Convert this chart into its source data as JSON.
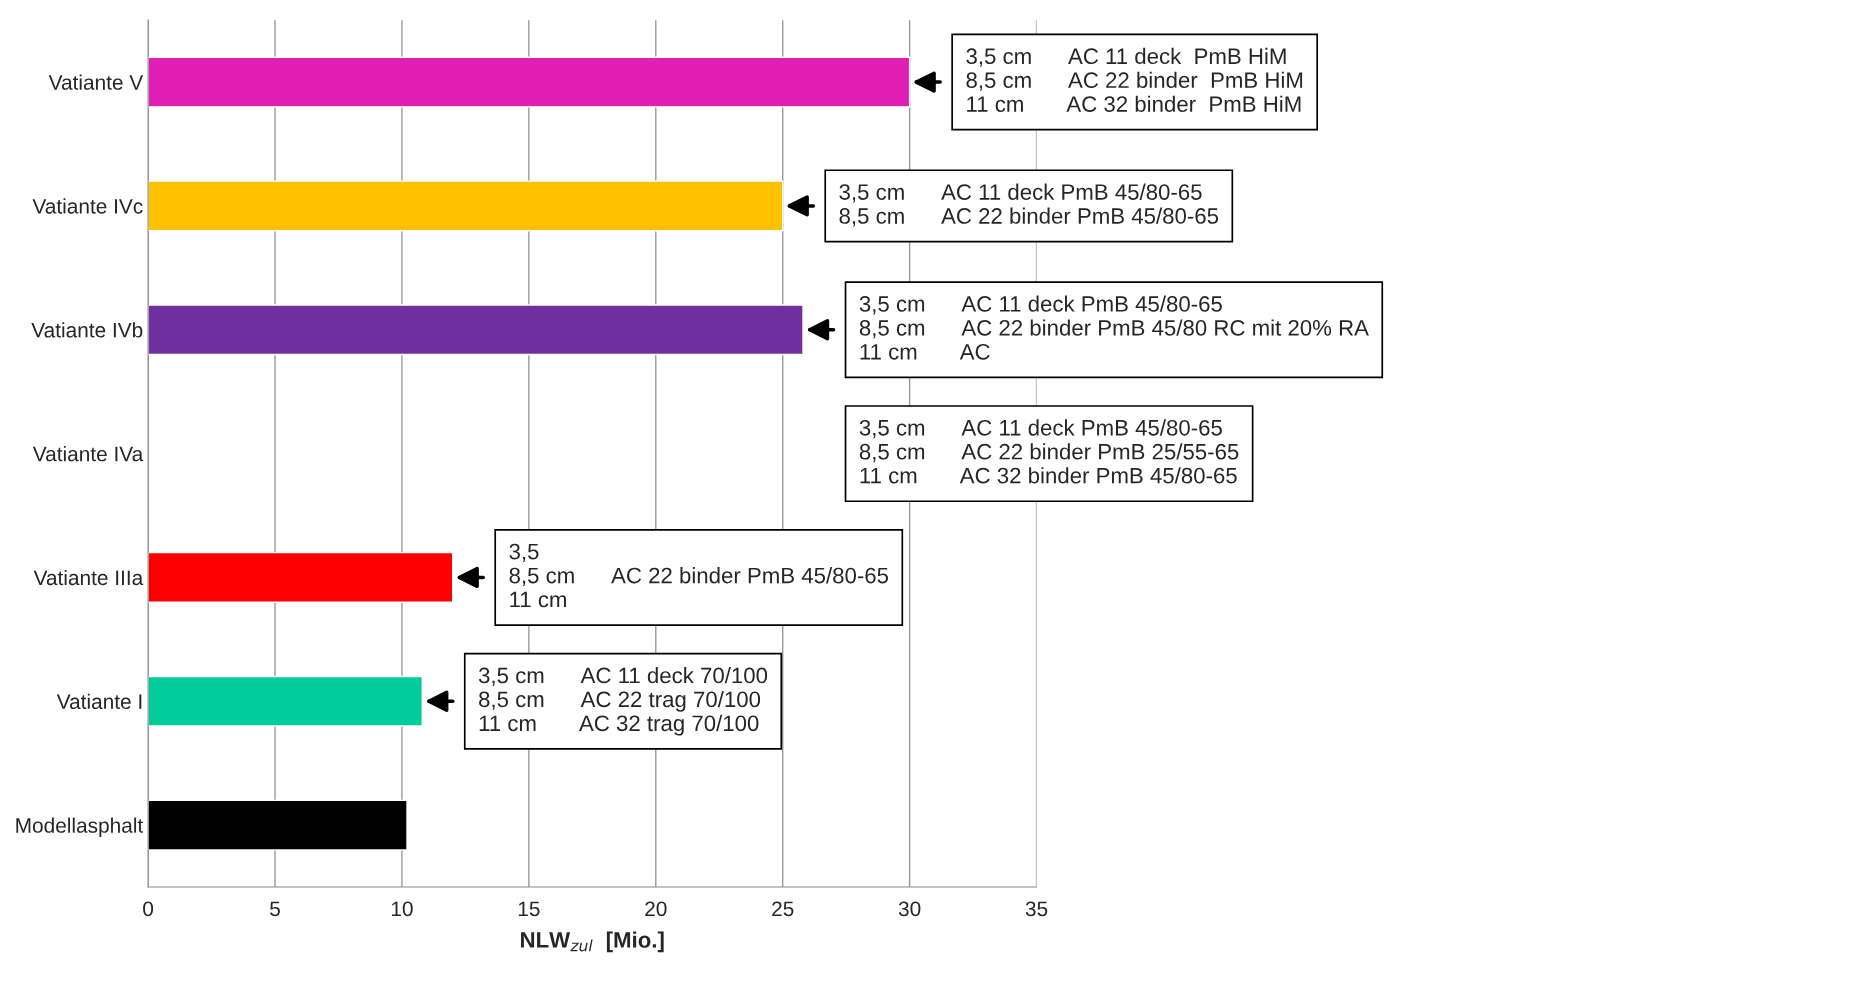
{
  "chart_data": {
    "type": "bar",
    "orientation": "horizontal",
    "xlabel": "NLW$_{zul}$  [Mio.]",
    "categories": [
      "Vatiante V",
      "Vatiante IVc",
      "Vatiante IVb",
      "Vatiante IVa",
      "Vatiante IIIa",
      "Vatiante I",
      "Modellasphalt"
    ],
    "values": [
      30,
      25,
      25.8,
      null,
      12,
      10.8,
      10.2
    ],
    "colors": [
      "#e21fb4",
      "#ffc000",
      "#7030a0",
      "#00b050",
      "#ff0000",
      "#00cc99",
      "#000000"
    ],
    "xlim": [
      0,
      35
    ],
    "xticks": [
      0,
      5,
      10,
      15,
      20,
      25,
      30,
      35
    ],
    "grid": "x",
    "annotations": [
      {
        "text": "3,5 cm      AC 11 deck  PmB HiM\n8,5 cm      AC 22 binder  PmB HiM\n11 cm       AC 32 binder  PmB HiM",
        "x": 30,
        "y": "Vatiante V"
      },
      {
        "text": "3,5 cm      AC 11 deck PmB 45/80-65\n8,5 cm      AC 22 binder PmB 45/80-65",
        "x": 25,
        "y": "Vatiante IVc"
      },
      {
        "text": "3,5 cm      AC 11 deck PmB 45/80-65\n8,5 cm      AC 22 binder PmB 45/80 RC mit 20% RA\n11 cm       AC",
        "x": 25.8,
        "y": "Vatiante IVb"
      },
      "3,5 cm      AC 11 deck PmB 45/80-65\n8,5 cm      AC 22 binder PmB 25/55-65\n11 cm       AC 32 binder PmB 45/80-65",
      {
        "text": "3,5\n8,5 cm      AC 22 binder PmB 45/80-65\n11 cm",
        "x": 12,
        "y": "Vatiante IIIa"
      },
      {
        "text": "3,5 cm      AC 11 deck 70/100\n8,5 cm      AC 22 trag 70/100\n11 cm       AC 32 trag 70/100",
        "x": 10.8,
        "y": "Vatiante I"
      }
    ]
  }
}
